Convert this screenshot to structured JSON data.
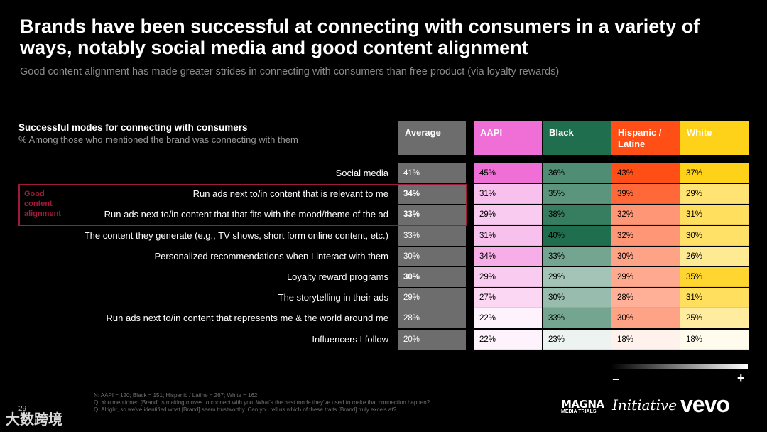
{
  "title": "Brands have been successful at connecting with consumers in a variety of ways, notably social media and good content alignment",
  "subtitle": "Good content alignment has made greater strides in connecting with consumers than free product (via loyalty rewards)",
  "callout_label": "Good content alignment",
  "legend": {
    "minus": "−",
    "plus": "+"
  },
  "footnotes": [
    "N: AAPI = 120; Black = 151; Hispanic / Latine = 267; White = 162",
    "Q: You mentioned [Brand] is making moves to connect with you. What's the best mode they've used to make that connection happen?",
    "Q: Alright, so we've identified what [Brand] seem trustworthy. Can you tell us which of these traits [Brand] truly excels at?"
  ],
  "page_number": "29",
  "logos": {
    "magna": "MAGNA",
    "magna_sub": "MEDIA TRIALS",
    "initiative": "Initiative",
    "vevo": "vevo"
  },
  "watermark": "大数跨境",
  "colors": {
    "average": "#6d6d6d",
    "aapi": "#f06fd6",
    "black": "#1f6e4e",
    "hispanic": "#ff4f17",
    "white": "#ffd21a",
    "callout": "#a01a3a"
  },
  "chart_data": {
    "type": "table",
    "title": "Successful modes for connecting with consumers",
    "subtitle": "% Among those who mentioned the brand was connecting with them",
    "columns": [
      "Average",
      "AAPI",
      "Black",
      "Hispanic / Latine",
      "White"
    ],
    "rows": [
      "Social media",
      "Run ads next to/in content that is relevant to me",
      "Run ads next to/in content that that fits with the mood/theme of the ad",
      "The content they generate (e.g., TV shows, short form online content, etc.)",
      "Personalized recommendations when I interact with them",
      "Loyalty reward programs",
      "The storytelling in their ads",
      "Run ads next to/in content that represents me & the world around me",
      "Influencers I follow"
    ],
    "series": [
      {
        "name": "Average",
        "values": [
          41,
          34,
          33,
          33,
          30,
          30,
          29,
          28,
          20
        ]
      },
      {
        "name": "AAPI",
        "values": [
          45,
          31,
          29,
          31,
          34,
          29,
          27,
          22,
          22
        ]
      },
      {
        "name": "Black",
        "values": [
          36,
          35,
          38,
          40,
          33,
          29,
          30,
          33,
          23
        ]
      },
      {
        "name": "Hispanic / Latine",
        "values": [
          43,
          39,
          32,
          32,
          30,
          29,
          28,
          30,
          18
        ]
      },
      {
        "name": "White",
        "values": [
          37,
          29,
          31,
          30,
          26,
          35,
          31,
          25,
          18
        ]
      }
    ],
    "bold_average_rows": [
      1,
      2,
      5
    ],
    "unit": "%"
  }
}
